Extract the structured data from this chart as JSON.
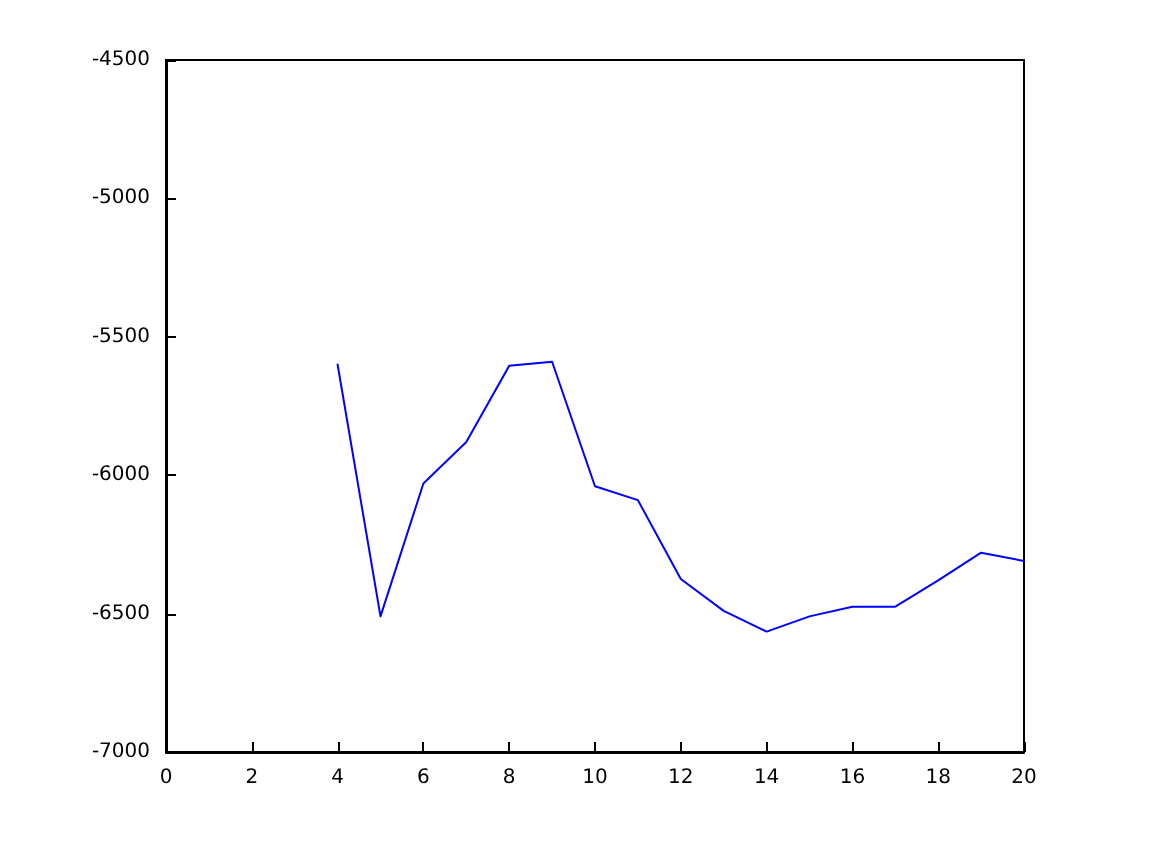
{
  "chart_data": {
    "type": "line",
    "x": [
      4,
      5,
      6,
      7,
      8,
      9,
      10,
      11,
      12,
      13,
      14,
      15,
      16,
      17,
      18,
      19,
      20
    ],
    "series": [
      {
        "color": "#0000ff",
        "values": [
          -5600,
          -6510,
          -6030,
          -5880,
          -5605,
          -5590,
          -6040,
          -6090,
          -6375,
          -6490,
          -6565,
          -6510,
          -6475,
          -6475,
          -6380,
          -6280,
          -6310
        ]
      }
    ],
    "xlim": [
      0,
      20
    ],
    "xticks": [
      0,
      2,
      4,
      6,
      8,
      10,
      12,
      14,
      16,
      18,
      20
    ],
    "ylim": [
      -7000,
      -4500
    ],
    "yticks": [
      -7000,
      -6500,
      -6000,
      -5500,
      -5000,
      -4500
    ],
    "grid": false,
    "marker": "none",
    "line_style": "solid"
  }
}
